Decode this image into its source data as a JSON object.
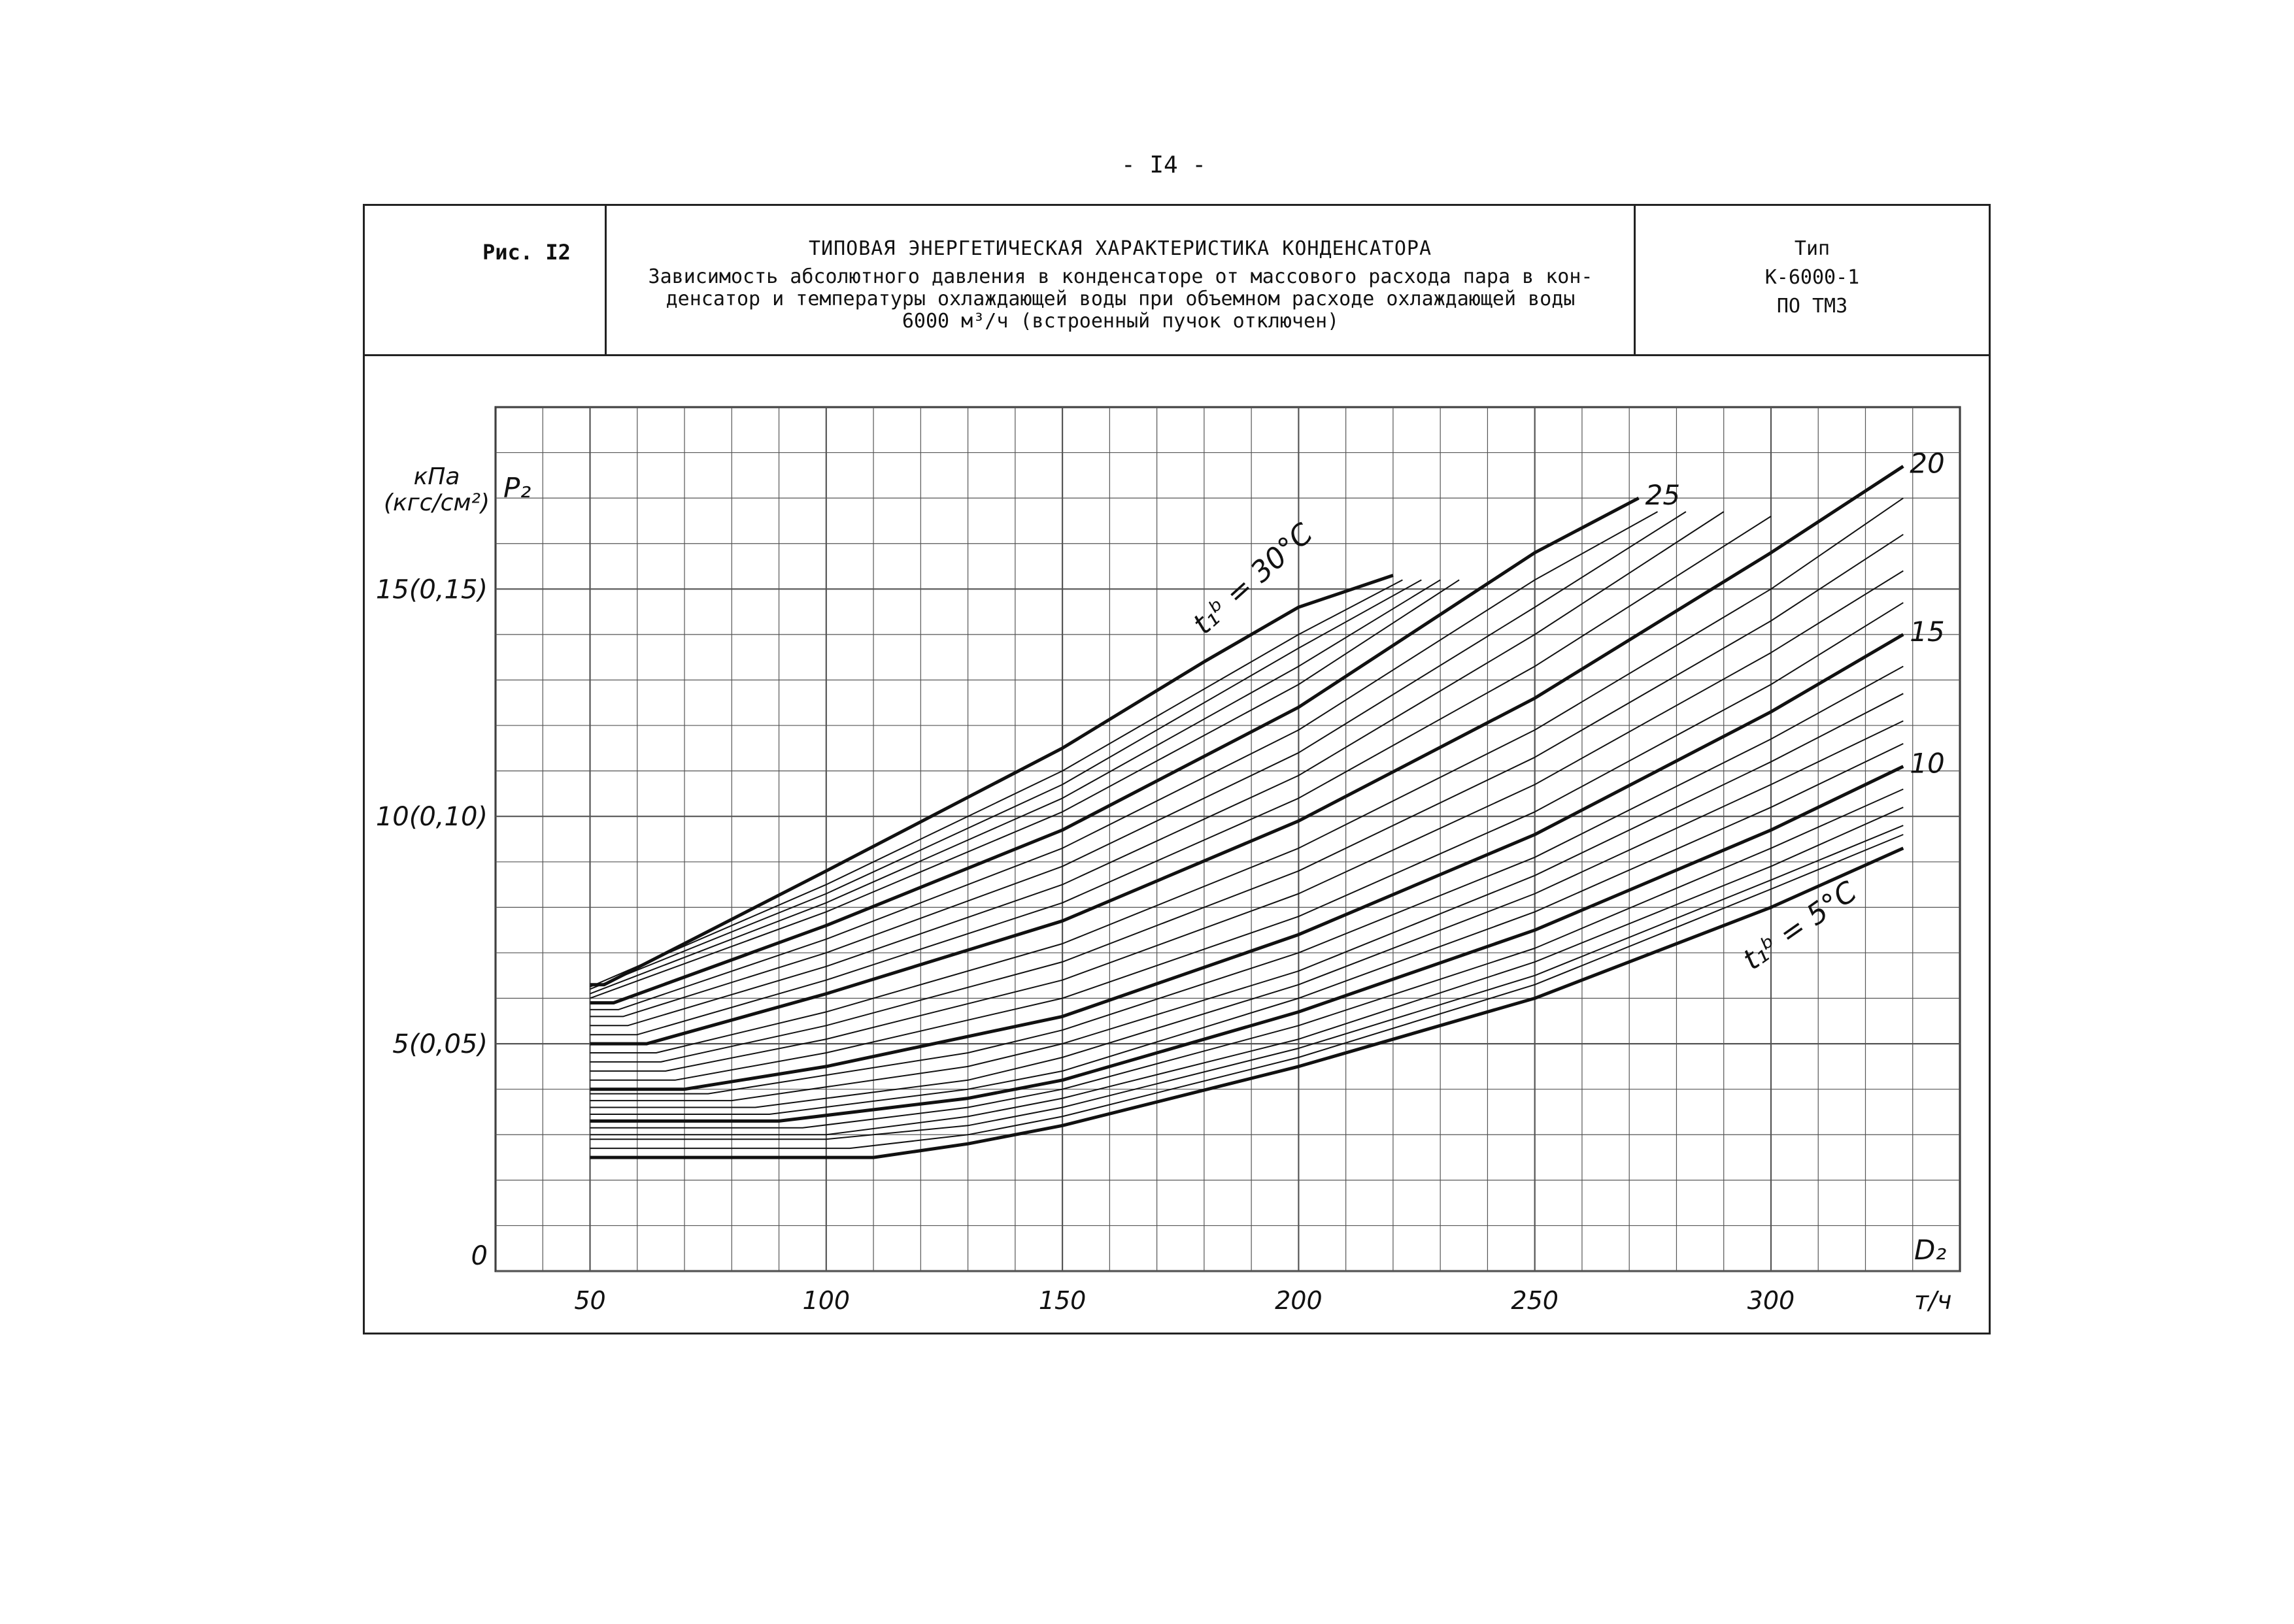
{
  "page": {
    "number": "- I4 -"
  },
  "header": {
    "figure_label": "Рис. I2",
    "title": "ТИПОВАЯ ЭНЕРГЕТИЧЕСКАЯ ХАРАКТЕРИСТИКА КОНДЕНСАТОРА",
    "subtitle_lines": [
      "Зависимость абсолютного давления в конденсаторе от массового расхода пара в кон-",
      "денсатор и температуры охлаждающей воды при объемном расходе охлаждающей воды",
      "6000 м³/ч (встроенный пучок отключен)"
    ],
    "type_lines": [
      "Тип",
      "К-6000-1",
      "ПО ТМЗ"
    ]
  },
  "chart_data": {
    "type": "line",
    "ylabel_symbol": "P₂",
    "ylabel_units": [
      "кПа",
      "(кгс/см²)"
    ],
    "xlabel_symbol": "D₂",
    "xlabel_units": "т/ч",
    "xlim": [
      30,
      340
    ],
    "ylim": [
      0,
      19
    ],
    "x_ticks": [
      50,
      100,
      150,
      200,
      250,
      300
    ],
    "x_tick_labels": [
      "50",
      "100",
      "150",
      "200",
      "250",
      "300"
    ],
    "y_ticks": [
      0,
      5,
      10,
      15
    ],
    "y_tick_labels": [
      "0",
      "5(0,05)",
      "10(0,10)",
      "15(0,15)"
    ],
    "grid": true,
    "curve_labels": [
      {
        "t": 30,
        "text": "t₁ᵇ = 30°C"
      },
      {
        "t": 25,
        "text": "25"
      },
      {
        "t": 20,
        "text": "20"
      },
      {
        "t": 15,
        "text": "15"
      },
      {
        "t": 10,
        "text": "10"
      },
      {
        "t": 5,
        "text": "t₁ᵇ = 5°C"
      }
    ],
    "series": [
      {
        "t": 5,
        "bold": true,
        "points": [
          [
            50,
            2.5
          ],
          [
            110,
            2.5
          ],
          [
            130,
            2.8
          ],
          [
            150,
            3.2
          ],
          [
            200,
            4.5
          ],
          [
            250,
            6.0
          ],
          [
            300,
            8.0
          ],
          [
            328,
            9.3
          ]
        ]
      },
      {
        "t": 6,
        "bold": false,
        "points": [
          [
            50,
            2.7
          ],
          [
            105,
            2.7
          ],
          [
            130,
            3.0
          ],
          [
            150,
            3.4
          ],
          [
            200,
            4.7
          ],
          [
            250,
            6.3
          ],
          [
            300,
            8.4
          ],
          [
            328,
            9.6
          ]
        ]
      },
      {
        "t": 7,
        "bold": false,
        "points": [
          [
            50,
            2.9
          ],
          [
            100,
            2.9
          ],
          [
            130,
            3.2
          ],
          [
            150,
            3.6
          ],
          [
            200,
            4.9
          ],
          [
            250,
            6.5
          ],
          [
            300,
            8.6
          ],
          [
            328,
            9.8
          ]
        ]
      },
      {
        "t": 8,
        "bold": false,
        "points": [
          [
            50,
            3.0
          ],
          [
            100,
            3.0
          ],
          [
            130,
            3.4
          ],
          [
            150,
            3.8
          ],
          [
            200,
            5.1
          ],
          [
            250,
            6.8
          ],
          [
            300,
            8.9
          ],
          [
            328,
            10.2
          ]
        ]
      },
      {
        "t": 9,
        "bold": false,
        "points": [
          [
            50,
            3.15
          ],
          [
            95,
            3.15
          ],
          [
            130,
            3.6
          ],
          [
            150,
            4.0
          ],
          [
            200,
            5.4
          ],
          [
            250,
            7.1
          ],
          [
            300,
            9.3
          ],
          [
            328,
            10.6
          ]
        ]
      },
      {
        "t": 10,
        "bold": true,
        "points": [
          [
            50,
            3.3
          ],
          [
            90,
            3.3
          ],
          [
            130,
            3.8
          ],
          [
            150,
            4.2
          ],
          [
            200,
            5.7
          ],
          [
            250,
            7.5
          ],
          [
            300,
            9.7
          ],
          [
            328,
            11.1
          ]
        ]
      },
      {
        "t": 11,
        "bold": false,
        "points": [
          [
            50,
            3.45
          ],
          [
            88,
            3.45
          ],
          [
            130,
            4.0
          ],
          [
            150,
            4.4
          ],
          [
            200,
            6.0
          ],
          [
            250,
            7.9
          ],
          [
            300,
            10.2
          ],
          [
            328,
            11.6
          ]
        ]
      },
      {
        "t": 12,
        "bold": false,
        "points": [
          [
            50,
            3.6
          ],
          [
            85,
            3.6
          ],
          [
            130,
            4.2
          ],
          [
            150,
            4.7
          ],
          [
            200,
            6.3
          ],
          [
            250,
            8.3
          ],
          [
            300,
            10.7
          ],
          [
            328,
            12.1
          ]
        ]
      },
      {
        "t": 13,
        "bold": false,
        "points": [
          [
            50,
            3.75
          ],
          [
            80,
            3.75
          ],
          [
            130,
            4.5
          ],
          [
            150,
            5.0
          ],
          [
            200,
            6.6
          ],
          [
            250,
            8.7
          ],
          [
            300,
            11.2
          ],
          [
            328,
            12.7
          ]
        ]
      },
      {
        "t": 14,
        "bold": false,
        "points": [
          [
            50,
            3.9
          ],
          [
            75,
            3.9
          ],
          [
            130,
            4.8
          ],
          [
            150,
            5.3
          ],
          [
            200,
            7.0
          ],
          [
            250,
            9.1
          ],
          [
            300,
            11.7
          ],
          [
            328,
            13.3
          ]
        ]
      },
      {
        "t": 15,
        "bold": true,
        "points": [
          [
            50,
            4.0
          ],
          [
            70,
            4.0
          ],
          [
            100,
            4.5
          ],
          [
            150,
            5.6
          ],
          [
            200,
            7.4
          ],
          [
            250,
            9.6
          ],
          [
            300,
            12.3
          ],
          [
            328,
            14.0
          ]
        ]
      },
      {
        "t": 16,
        "bold": false,
        "points": [
          [
            50,
            4.2
          ],
          [
            68,
            4.2
          ],
          [
            100,
            4.8
          ],
          [
            150,
            6.0
          ],
          [
            200,
            7.8
          ],
          [
            250,
            10.1
          ],
          [
            300,
            12.9
          ],
          [
            328,
            14.7
          ]
        ]
      },
      {
        "t": 17,
        "bold": false,
        "points": [
          [
            50,
            4.4
          ],
          [
            66,
            4.4
          ],
          [
            100,
            5.1
          ],
          [
            150,
            6.4
          ],
          [
            200,
            8.3
          ],
          [
            250,
            10.7
          ],
          [
            300,
            13.6
          ],
          [
            328,
            15.4
          ]
        ]
      },
      {
        "t": 18,
        "bold": false,
        "points": [
          [
            50,
            4.6
          ],
          [
            65,
            4.6
          ],
          [
            100,
            5.4
          ],
          [
            150,
            6.8
          ],
          [
            200,
            8.8
          ],
          [
            250,
            11.3
          ],
          [
            300,
            14.3
          ],
          [
            328,
            16.2
          ]
        ]
      },
      {
        "t": 19,
        "bold": false,
        "points": [
          [
            50,
            4.8
          ],
          [
            64,
            4.8
          ],
          [
            100,
            5.7
          ],
          [
            150,
            7.2
          ],
          [
            200,
            9.3
          ],
          [
            250,
            11.9
          ],
          [
            300,
            15.0
          ],
          [
            328,
            17.0
          ]
        ]
      },
      {
        "t": 20,
        "bold": true,
        "points": [
          [
            50,
            5.0
          ],
          [
            62,
            5.0
          ],
          [
            100,
            6.1
          ],
          [
            150,
            7.7
          ],
          [
            200,
            9.9
          ],
          [
            250,
            12.6
          ],
          [
            300,
            15.8
          ],
          [
            328,
            17.7
          ]
        ]
      },
      {
        "t": 21,
        "bold": false,
        "points": [
          [
            50,
            5.2
          ],
          [
            60,
            5.2
          ],
          [
            100,
            6.4
          ],
          [
            150,
            8.1
          ],
          [
            200,
            10.4
          ],
          [
            250,
            13.3
          ],
          [
            300,
            16.6
          ]
        ]
      },
      {
        "t": 22,
        "bold": false,
        "points": [
          [
            50,
            5.4
          ],
          [
            58,
            5.4
          ],
          [
            100,
            6.7
          ],
          [
            150,
            8.5
          ],
          [
            200,
            10.9
          ],
          [
            250,
            14.0
          ],
          [
            290,
            16.7
          ]
        ]
      },
      {
        "t": 23,
        "bold": false,
        "points": [
          [
            50,
            5.6
          ],
          [
            57,
            5.6
          ],
          [
            100,
            7.0
          ],
          [
            150,
            8.9
          ],
          [
            200,
            11.4
          ],
          [
            250,
            14.6
          ],
          [
            282,
            16.7
          ]
        ]
      },
      {
        "t": 24,
        "bold": false,
        "points": [
          [
            50,
            5.75
          ],
          [
            56,
            5.75
          ],
          [
            100,
            7.3
          ],
          [
            150,
            9.3
          ],
          [
            200,
            11.9
          ],
          [
            250,
            15.2
          ],
          [
            276,
            16.7
          ]
        ]
      },
      {
        "t": 25,
        "bold": true,
        "points": [
          [
            50,
            5.9
          ],
          [
            55,
            5.9
          ],
          [
            100,
            7.6
          ],
          [
            150,
            9.7
          ],
          [
            200,
            12.4
          ],
          [
            250,
            15.8
          ],
          [
            272,
            17.0
          ]
        ]
      },
      {
        "t": 26,
        "bold": false,
        "points": [
          [
            50,
            6.0
          ],
          [
            100,
            7.9
          ],
          [
            150,
            10.1
          ],
          [
            200,
            12.9
          ],
          [
            234,
            15.2
          ]
        ]
      },
      {
        "t": 27,
        "bold": false,
        "points": [
          [
            50,
            6.1
          ],
          [
            100,
            8.1
          ],
          [
            150,
            10.4
          ],
          [
            200,
            13.3
          ],
          [
            230,
            15.2
          ]
        ]
      },
      {
        "t": 28,
        "bold": false,
        "points": [
          [
            50,
            6.2
          ],
          [
            100,
            8.3
          ],
          [
            150,
            10.7
          ],
          [
            200,
            13.7
          ],
          [
            226,
            15.2
          ]
        ]
      },
      {
        "t": 29,
        "bold": false,
        "points": [
          [
            50,
            6.25
          ],
          [
            100,
            8.5
          ],
          [
            150,
            11.0
          ],
          [
            200,
            14.0
          ],
          [
            222,
            15.2
          ]
        ]
      },
      {
        "t": 30,
        "bold": true,
        "points": [
          [
            50,
            6.3
          ],
          [
            53,
            6.3
          ],
          [
            100,
            8.8
          ],
          [
            150,
            11.5
          ],
          [
            180,
            13.4
          ],
          [
            200,
            14.6
          ],
          [
            220,
            15.3
          ]
        ]
      }
    ]
  }
}
